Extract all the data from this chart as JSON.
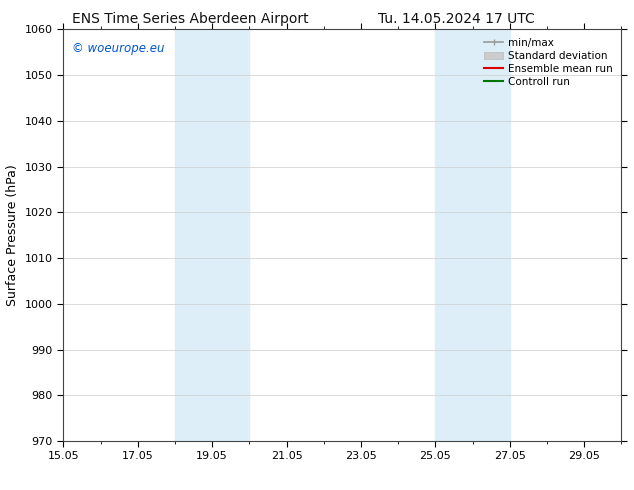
{
  "title_left": "ENS Time Series Aberdeen Airport",
  "title_right": "Tu. 14.05.2024 17 UTC",
  "ylabel": "Surface Pressure (hPa)",
  "ylim": [
    970,
    1060
  ],
  "yticks": [
    970,
    980,
    990,
    1000,
    1010,
    1020,
    1030,
    1040,
    1050,
    1060
  ],
  "xtick_labels": [
    "15.05",
    "17.05",
    "19.05",
    "21.05",
    "23.05",
    "25.05",
    "27.05",
    "29.05"
  ],
  "xtick_positions": [
    0,
    2,
    4,
    6,
    8,
    10,
    12,
    14
  ],
  "xlim": [
    0,
    15
  ],
  "shaded_bands": [
    {
      "x_start": 3.0,
      "x_end": 5.0,
      "color": "#ddeef8"
    },
    {
      "x_start": 10.0,
      "x_end": 12.0,
      "color": "#ddeef8"
    }
  ],
  "watermark_text": "© woeurope.eu",
  "watermark_color": "#0055cc",
  "bg_color": "#ffffff",
  "plot_bg_color": "#ffffff",
  "grid_color": "#cccccc",
  "grid_linestyle": "-",
  "grid_linewidth": 0.5,
  "title_fontsize": 10,
  "label_fontsize": 9,
  "tick_fontsize": 8,
  "legend_fontsize": 7.5
}
